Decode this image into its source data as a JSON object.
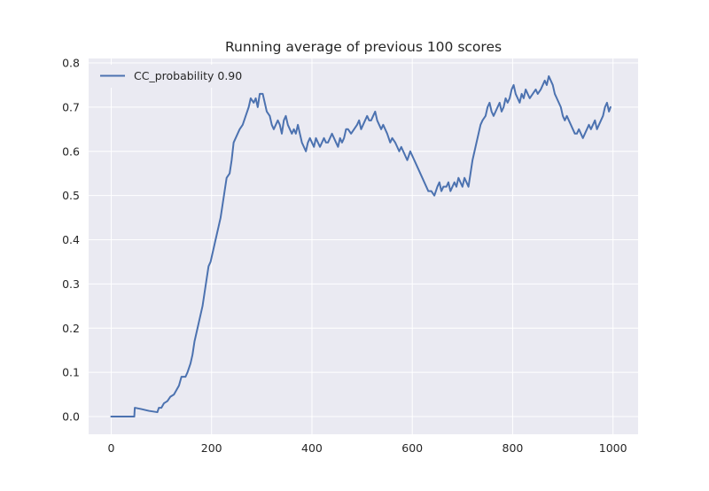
{
  "chart_data": {
    "type": "line",
    "title": "Running average of previous 100 scores",
    "xlabel": "",
    "ylabel": "",
    "xlim": [
      -45,
      1050
    ],
    "ylim": [
      -0.04,
      0.81
    ],
    "xticks": [
      0,
      200,
      400,
      600,
      800,
      1000
    ],
    "xtick_labels": [
      "0",
      "200",
      "400",
      "600",
      "800",
      "1000"
    ],
    "yticks": [
      0.0,
      0.1,
      0.2,
      0.3,
      0.4,
      0.5,
      0.6,
      0.7,
      0.8
    ],
    "ytick_labels": [
      "0.0",
      "0.1",
      "0.2",
      "0.3",
      "0.4",
      "0.5",
      "0.6",
      "0.7",
      "0.8"
    ],
    "grid": true,
    "legend": "top-left",
    "series": [
      {
        "name": "CC_probability 0.90",
        "color": "#4c72b0",
        "points": [
          [
            0,
            0.0
          ],
          [
            46,
            0.0
          ],
          [
            47,
            0.02
          ],
          [
            60,
            0.017
          ],
          [
            75,
            0.013
          ],
          [
            92,
            0.01
          ],
          [
            95,
            0.02
          ],
          [
            100,
            0.02
          ],
          [
            105,
            0.03
          ],
          [
            112,
            0.035
          ],
          [
            118,
            0.045
          ],
          [
            125,
            0.05
          ],
          [
            130,
            0.06
          ],
          [
            135,
            0.07
          ],
          [
            140,
            0.09
          ],
          [
            148,
            0.09
          ],
          [
            152,
            0.1
          ],
          [
            158,
            0.12
          ],
          [
            162,
            0.14
          ],
          [
            166,
            0.17
          ],
          [
            170,
            0.19
          ],
          [
            174,
            0.21
          ],
          [
            178,
            0.23
          ],
          [
            182,
            0.25
          ],
          [
            186,
            0.28
          ],
          [
            190,
            0.31
          ],
          [
            194,
            0.34
          ],
          [
            198,
            0.35
          ],
          [
            202,
            0.37
          ],
          [
            206,
            0.39
          ],
          [
            210,
            0.41
          ],
          [
            214,
            0.43
          ],
          [
            218,
            0.45
          ],
          [
            222,
            0.48
          ],
          [
            226,
            0.51
          ],
          [
            230,
            0.54
          ],
          [
            236,
            0.55
          ],
          [
            240,
            0.58
          ],
          [
            244,
            0.62
          ],
          [
            248,
            0.63
          ],
          [
            252,
            0.64
          ],
          [
            256,
            0.65
          ],
          [
            262,
            0.66
          ],
          [
            268,
            0.68
          ],
          [
            274,
            0.7
          ],
          [
            278,
            0.72
          ],
          [
            284,
            0.71
          ],
          [
            288,
            0.72
          ],
          [
            292,
            0.7
          ],
          [
            296,
            0.73
          ],
          [
            302,
            0.73
          ],
          [
            306,
            0.71
          ],
          [
            310,
            0.69
          ],
          [
            316,
            0.68
          ],
          [
            320,
            0.66
          ],
          [
            324,
            0.65
          ],
          [
            328,
            0.66
          ],
          [
            332,
            0.67
          ],
          [
            336,
            0.66
          ],
          [
            340,
            0.64
          ],
          [
            344,
            0.67
          ],
          [
            348,
            0.68
          ],
          [
            352,
            0.66
          ],
          [
            356,
            0.65
          ],
          [
            360,
            0.64
          ],
          [
            364,
            0.65
          ],
          [
            368,
            0.64
          ],
          [
            372,
            0.66
          ],
          [
            376,
            0.64
          ],
          [
            380,
            0.62
          ],
          [
            384,
            0.61
          ],
          [
            388,
            0.6
          ],
          [
            392,
            0.62
          ],
          [
            396,
            0.63
          ],
          [
            400,
            0.62
          ],
          [
            404,
            0.61
          ],
          [
            408,
            0.63
          ],
          [
            412,
            0.62
          ],
          [
            416,
            0.61
          ],
          [
            420,
            0.62
          ],
          [
            424,
            0.63
          ],
          [
            428,
            0.62
          ],
          [
            432,
            0.62
          ],
          [
            436,
            0.63
          ],
          [
            440,
            0.64
          ],
          [
            444,
            0.63
          ],
          [
            448,
            0.62
          ],
          [
            452,
            0.61
          ],
          [
            456,
            0.63
          ],
          [
            460,
            0.62
          ],
          [
            464,
            0.63
          ],
          [
            468,
            0.65
          ],
          [
            472,
            0.65
          ],
          [
            478,
            0.64
          ],
          [
            484,
            0.65
          ],
          [
            490,
            0.66
          ],
          [
            494,
            0.67
          ],
          [
            498,
            0.65
          ],
          [
            502,
            0.66
          ],
          [
            506,
            0.67
          ],
          [
            510,
            0.68
          ],
          [
            514,
            0.67
          ],
          [
            518,
            0.67
          ],
          [
            522,
            0.68
          ],
          [
            526,
            0.69
          ],
          [
            530,
            0.67
          ],
          [
            534,
            0.66
          ],
          [
            538,
            0.65
          ],
          [
            542,
            0.66
          ],
          [
            546,
            0.65
          ],
          [
            550,
            0.64
          ],
          [
            556,
            0.62
          ],
          [
            560,
            0.63
          ],
          [
            566,
            0.62
          ],
          [
            570,
            0.61
          ],
          [
            574,
            0.6
          ],
          [
            578,
            0.61
          ],
          [
            582,
            0.6
          ],
          [
            586,
            0.59
          ],
          [
            590,
            0.58
          ],
          [
            596,
            0.6
          ],
          [
            600,
            0.59
          ],
          [
            604,
            0.58
          ],
          [
            608,
            0.57
          ],
          [
            612,
            0.56
          ],
          [
            616,
            0.55
          ],
          [
            620,
            0.54
          ],
          [
            624,
            0.53
          ],
          [
            628,
            0.52
          ],
          [
            632,
            0.51
          ],
          [
            638,
            0.51
          ],
          [
            644,
            0.5
          ],
          [
            650,
            0.52
          ],
          [
            654,
            0.53
          ],
          [
            658,
            0.51
          ],
          [
            662,
            0.52
          ],
          [
            668,
            0.52
          ],
          [
            672,
            0.53
          ],
          [
            676,
            0.51
          ],
          [
            680,
            0.52
          ],
          [
            684,
            0.53
          ],
          [
            688,
            0.52
          ],
          [
            692,
            0.54
          ],
          [
            696,
            0.53
          ],
          [
            700,
            0.52
          ],
          [
            704,
            0.54
          ],
          [
            708,
            0.53
          ],
          [
            712,
            0.52
          ],
          [
            716,
            0.55
          ],
          [
            720,
            0.58
          ],
          [
            724,
            0.6
          ],
          [
            728,
            0.62
          ],
          [
            732,
            0.64
          ],
          [
            736,
            0.66
          ],
          [
            740,
            0.67
          ],
          [
            746,
            0.68
          ],
          [
            750,
            0.7
          ],
          [
            754,
            0.71
          ],
          [
            758,
            0.69
          ],
          [
            762,
            0.68
          ],
          [
            766,
            0.69
          ],
          [
            770,
            0.7
          ],
          [
            774,
            0.71
          ],
          [
            778,
            0.69
          ],
          [
            782,
            0.7
          ],
          [
            786,
            0.72
          ],
          [
            790,
            0.71
          ],
          [
            794,
            0.72
          ],
          [
            798,
            0.74
          ],
          [
            802,
            0.75
          ],
          [
            806,
            0.73
          ],
          [
            810,
            0.72
          ],
          [
            814,
            0.71
          ],
          [
            818,
            0.73
          ],
          [
            822,
            0.72
          ],
          [
            826,
            0.74
          ],
          [
            830,
            0.73
          ],
          [
            834,
            0.72
          ],
          [
            840,
            0.73
          ],
          [
            846,
            0.74
          ],
          [
            850,
            0.73
          ],
          [
            856,
            0.74
          ],
          [
            860,
            0.75
          ],
          [
            864,
            0.76
          ],
          [
            868,
            0.75
          ],
          [
            872,
            0.77
          ],
          [
            876,
            0.76
          ],
          [
            880,
            0.75
          ],
          [
            884,
            0.73
          ],
          [
            888,
            0.72
          ],
          [
            892,
            0.71
          ],
          [
            896,
            0.7
          ],
          [
            900,
            0.68
          ],
          [
            904,
            0.67
          ],
          [
            908,
            0.68
          ],
          [
            912,
            0.67
          ],
          [
            916,
            0.66
          ],
          [
            920,
            0.65
          ],
          [
            924,
            0.64
          ],
          [
            928,
            0.64
          ],
          [
            932,
            0.65
          ],
          [
            936,
            0.64
          ],
          [
            940,
            0.63
          ],
          [
            944,
            0.64
          ],
          [
            948,
            0.65
          ],
          [
            952,
            0.66
          ],
          [
            956,
            0.65
          ],
          [
            960,
            0.66
          ],
          [
            964,
            0.67
          ],
          [
            968,
            0.65
          ],
          [
            972,
            0.66
          ],
          [
            976,
            0.67
          ],
          [
            980,
            0.68
          ],
          [
            984,
            0.7
          ],
          [
            988,
            0.71
          ],
          [
            992,
            0.69
          ],
          [
            995,
            0.7
          ]
        ]
      }
    ]
  }
}
